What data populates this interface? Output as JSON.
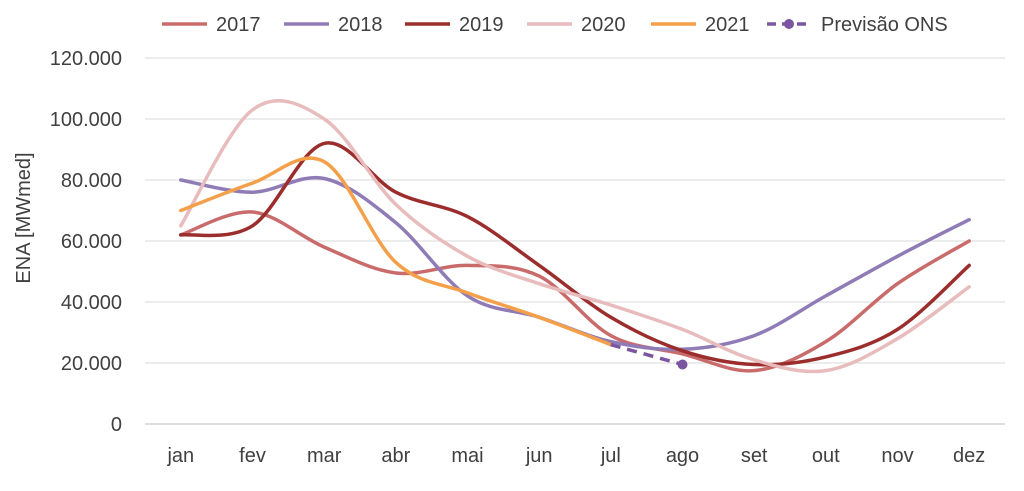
{
  "chart_data": {
    "type": "line",
    "title": "",
    "xlabel": "",
    "ylabel": "ENA [MWmed]",
    "categories": [
      "jan",
      "fev",
      "mar",
      "abr",
      "mai",
      "jun",
      "jul",
      "ago",
      "set",
      "out",
      "nov",
      "dez"
    ],
    "ylim": [
      0,
      120000
    ],
    "yticks": [
      {
        "value": 0,
        "label": "0"
      },
      {
        "value": 20000,
        "label": "20.000"
      },
      {
        "value": 40000,
        "label": "40.000"
      },
      {
        "value": 60000,
        "label": "60.000"
      },
      {
        "value": 80000,
        "label": "80.000"
      },
      {
        "value": 100000,
        "label": "100.000"
      },
      {
        "value": 120000,
        "label": "120.000"
      }
    ],
    "grid": true,
    "legend_position": "top",
    "series": [
      {
        "name": "2017",
        "color": "#c96b6b",
        "style": "solid",
        "values": [
          62000,
          69500,
          58000,
          49500,
          52000,
          48500,
          29000,
          23000,
          17500,
          27000,
          46000,
          60000
        ]
      },
      {
        "name": "2018",
        "color": "#8f7bb5",
        "style": "solid",
        "values": [
          80000,
          76000,
          80500,
          66000,
          42000,
          35000,
          27000,
          24500,
          29000,
          42000,
          55000,
          67000
        ]
      },
      {
        "name": "2019",
        "color": "#9b2d2d",
        "style": "solid",
        "values": [
          62000,
          65000,
          92000,
          76000,
          68000,
          52000,
          35000,
          24000,
          19500,
          22000,
          31000,
          52000
        ]
      },
      {
        "name": "2020",
        "color": "#e8bcbc",
        "style": "solid",
        "values": [
          65000,
          103000,
          100000,
          72000,
          55000,
          46000,
          39000,
          31000,
          21000,
          17500,
          28000,
          45000
        ]
      },
      {
        "name": "2021",
        "color": "#f4a04a",
        "style": "solid",
        "values": [
          70000,
          79000,
          86000,
          53000,
          43000,
          35000,
          26000,
          null,
          null,
          null,
          null,
          null
        ]
      },
      {
        "name": "Previsão ONS",
        "color": "#7a55a0",
        "style": "dashed",
        "values": [
          null,
          null,
          null,
          null,
          null,
          null,
          26000,
          19500,
          null,
          null,
          null,
          null
        ]
      }
    ]
  }
}
